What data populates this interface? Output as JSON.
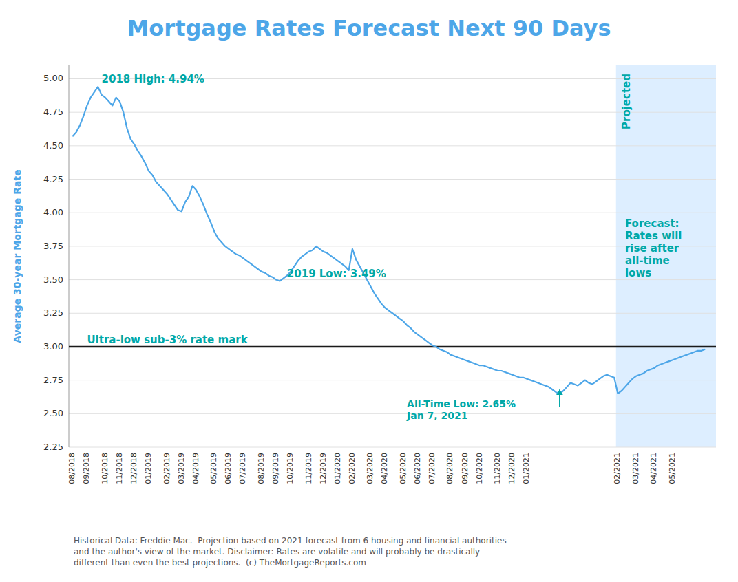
{
  "chart_data": {
    "type": "line",
    "title": "Mortgage Rates Forecast Next 90 Days",
    "ylabel": "Average 30-year Mortgage Rate",
    "color": "#4da6e8",
    "grid": true,
    "ylim": [
      2.25,
      5.1
    ],
    "yticks": [
      2.25,
      {
        "value": 2.5,
        "label": "2.50"
      },
      2.75,
      {
        "value": 3.0,
        "label": "3.00"
      },
      3.25,
      {
        "value": 3.5,
        "label": "3.50"
      },
      3.75,
      {
        "value": 4.0,
        "label": "4.00"
      },
      4.25,
      {
        "value": 4.5,
        "label": "4.50"
      },
      4.75,
      {
        "value": 5.0,
        "label": "5.00"
      }
    ],
    "categories": [
      "08/2018",
      null,
      null,
      null,
      "09/2018",
      null,
      null,
      null,
      null,
      "10/2018",
      null,
      null,
      null,
      "11/2018",
      null,
      null,
      null,
      "12/2018",
      null,
      null,
      null,
      "01/2019",
      null,
      null,
      null,
      null,
      "02/2019",
      null,
      null,
      null,
      "03/2019",
      null,
      null,
      null,
      "04/2019",
      null,
      null,
      null,
      null,
      "05/2019",
      null,
      null,
      null,
      "06/2019",
      null,
      null,
      null,
      "07/2019",
      null,
      null,
      null,
      null,
      "08/2019",
      null,
      null,
      null,
      "09/2019",
      null,
      null,
      null,
      "10/2019",
      null,
      null,
      null,
      null,
      "11/2019",
      null,
      null,
      null,
      "12/2019",
      null,
      null,
      null,
      "01/2020",
      null,
      null,
      null,
      "02/2020",
      null,
      null,
      null,
      null,
      "03/2020",
      null,
      null,
      null,
      "04/2020",
      null,
      null,
      null,
      null,
      "05/2020",
      null,
      null,
      null,
      "06/2020",
      null,
      null,
      null,
      "07/2020",
      null,
      null,
      null,
      null,
      "08/2020",
      null,
      null,
      null,
      "09/2020",
      null,
      null,
      null,
      "10/2020",
      null,
      null,
      null,
      null,
      "11/2020",
      null,
      null,
      null,
      "12/2020",
      null,
      null,
      null,
      "01/2021",
      null,
      null,
      null,
      null,
      null,
      null,
      null,
      null,
      null,
      null,
      null,
      null,
      null,
      null,
      null,
      null,
      null,
      null,
      null,
      null,
      null,
      null,
      null,
      null,
      "02/2021",
      null,
      null,
      null,
      null,
      "03/2021",
      null,
      null,
      null,
      null,
      "04/2021",
      null,
      null,
      null,
      null,
      "05/2021",
      null,
      null,
      null,
      null,
      null,
      null,
      null,
      null,
      null
    ],
    "values": [
      4.57,
      4.6,
      4.65,
      4.72,
      4.8,
      4.86,
      4.9,
      4.94,
      4.88,
      4.86,
      4.83,
      4.8,
      4.86,
      4.83,
      4.75,
      4.63,
      4.55,
      4.51,
      4.46,
      4.42,
      4.37,
      4.31,
      4.28,
      4.23,
      4.2,
      4.17,
      4.14,
      4.1,
      4.06,
      4.02,
      4.01,
      4.08,
      4.12,
      4.2,
      4.17,
      4.12,
      4.06,
      3.99,
      3.93,
      3.86,
      3.81,
      3.78,
      3.75,
      3.73,
      3.71,
      3.69,
      3.68,
      3.66,
      3.64,
      3.62,
      3.6,
      3.58,
      3.56,
      3.55,
      3.53,
      3.52,
      3.5,
      3.49,
      3.51,
      3.53,
      3.56,
      3.6,
      3.64,
      3.67,
      3.69,
      3.71,
      3.72,
      3.75,
      3.73,
      3.71,
      3.7,
      3.68,
      3.66,
      3.64,
      3.62,
      3.6,
      3.57,
      3.73,
      3.65,
      3.6,
      3.55,
      3.5,
      3.45,
      3.4,
      3.36,
      3.32,
      3.29,
      3.27,
      3.25,
      3.23,
      3.21,
      3.19,
      3.16,
      3.14,
      3.11,
      3.09,
      3.07,
      3.05,
      3.03,
      3.01,
      3.0,
      2.98,
      2.97,
      2.96,
      2.94,
      2.93,
      2.92,
      2.91,
      2.9,
      2.89,
      2.88,
      2.87,
      2.86,
      2.86,
      2.85,
      2.84,
      2.83,
      2.82,
      2.82,
      2.81,
      2.8,
      2.79,
      2.78,
      2.77,
      2.77,
      2.76,
      2.75,
      2.74,
      2.73,
      2.72,
      2.71,
      2.7,
      2.68,
      2.66,
      2.65,
      2.67,
      2.7,
      2.73,
      2.72,
      2.71,
      2.73,
      2.75,
      2.73,
      2.72,
      2.74,
      2.76,
      2.78,
      2.79,
      2.78,
      2.77,
      2.65,
      2.67,
      2.7,
      2.73,
      2.76,
      2.78,
      2.79,
      2.8,
      2.82,
      2.83,
      2.84,
      2.86,
      2.87,
      2.88,
      2.89,
      2.9,
      2.91,
      2.92,
      2.93,
      2.94,
      2.95,
      2.96,
      2.97,
      2.97,
      2.98
    ],
    "reference_line": {
      "value": 3.0,
      "color": "#1a1a1a",
      "label": "Ultra-low sub-3% rate mark",
      "label_color": "#00a8a8"
    },
    "shading": {
      "from": 150,
      "color": "#ddeeff"
    },
    "annotations": [
      {
        "text": "2018 High: 4.94%",
        "at": 7,
        "color": "#00a8a8"
      },
      {
        "text": "2019 Low: 3.49%",
        "at": 57,
        "color": "#00a8a8"
      },
      {
        "text": "All-Time Low: 2.65%\nJan 7, 2021",
        "at": 134,
        "color": "#00a8a8"
      },
      {
        "text": "Projected",
        "at": 150,
        "color": "#00a8a8"
      },
      {
        "text": "Forecast:\nRates will\nrise after\nall-time\nlows",
        "at": 150,
        "color": "#00a8a8"
      }
    ],
    "footnote": "Historical Data: Freddie Mac.  Projection based on 2021 forecast from 6 housing and financial authorities\nand the author's view of the market. Disclaimer: Rates are volatile and will probably be drastically\ndifferent than even the best projections.  (c) TheMortgageReports.com"
  }
}
